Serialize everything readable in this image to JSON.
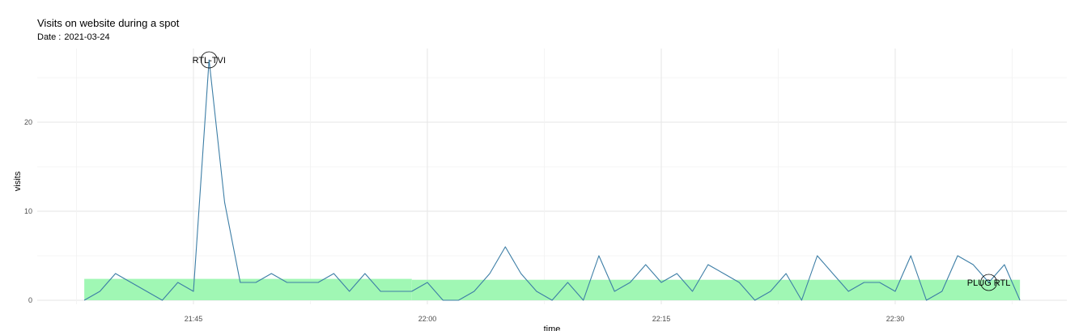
{
  "chart_data": {
    "type": "line",
    "title": "Visits on website during a spot",
    "subtitle_label": "Date :",
    "subtitle_value": "2021-03-24",
    "xlabel": "time",
    "ylabel": "visits",
    "x_tick_labels": [
      "21:45",
      "22:00",
      "22:15",
      "22:30"
    ],
    "x_tick_values": [
      "21:45",
      "22:00",
      "22:15",
      "22:30"
    ],
    "y_ticks": [
      0,
      10,
      20
    ],
    "ylim": [
      0,
      28
    ],
    "grid": true,
    "series": [
      {
        "color": "#3d7ea6",
        "x": [
          "21:38",
          "21:39",
          "21:40",
          "21:41",
          "21:42",
          "21:43",
          "21:44",
          "21:45",
          "21:46",
          "21:47",
          "21:48",
          "21:49",
          "21:50",
          "21:51",
          "21:52",
          "21:53",
          "21:54",
          "21:55",
          "21:56",
          "21:57",
          "21:58",
          "21:59",
          "22:00",
          "22:01",
          "22:02",
          "22:03",
          "22:04",
          "22:05",
          "22:06",
          "22:07",
          "22:08",
          "22:09",
          "22:10",
          "22:11",
          "22:12",
          "22:13",
          "22:14",
          "22:15",
          "22:16",
          "22:17",
          "22:18",
          "22:19",
          "22:20",
          "22:21",
          "22:22",
          "22:23",
          "22:24",
          "22:25",
          "22:26",
          "22:27",
          "22:28",
          "22:29",
          "22:30",
          "22:31",
          "22:32",
          "22:33",
          "22:34",
          "22:35",
          "22:36",
          "22:37",
          "22:38"
        ],
        "values": [
          0,
          1,
          3,
          2,
          1,
          0,
          2,
          1,
          27,
          11,
          2,
          2,
          3,
          2,
          2,
          2,
          3,
          1,
          3,
          1,
          1,
          1,
          2,
          0,
          0,
          1,
          3,
          6,
          3,
          1,
          0,
          2,
          0,
          5,
          1,
          2,
          4,
          2,
          3,
          1,
          4,
          3,
          2,
          0,
          1,
          3,
          0,
          5,
          3,
          1,
          2,
          2,
          1,
          5,
          0,
          1,
          5,
          4,
          2,
          4,
          0
        ]
      }
    ],
    "bands": [
      {
        "start": "21:38",
        "end": "21:59",
        "top": 2.4,
        "bottom": 0,
        "color": "#a0f7b4"
      },
      {
        "start": "21:59",
        "end": "22:38",
        "top": 2.3,
        "bottom": 0,
        "color": "#a0f7b4"
      }
    ],
    "annotations": [
      {
        "label": "RTL-TVI",
        "x": "21:46",
        "y": 27
      },
      {
        "label": "PLUG RTL",
        "x": "22:36",
        "y": 2
      }
    ]
  }
}
